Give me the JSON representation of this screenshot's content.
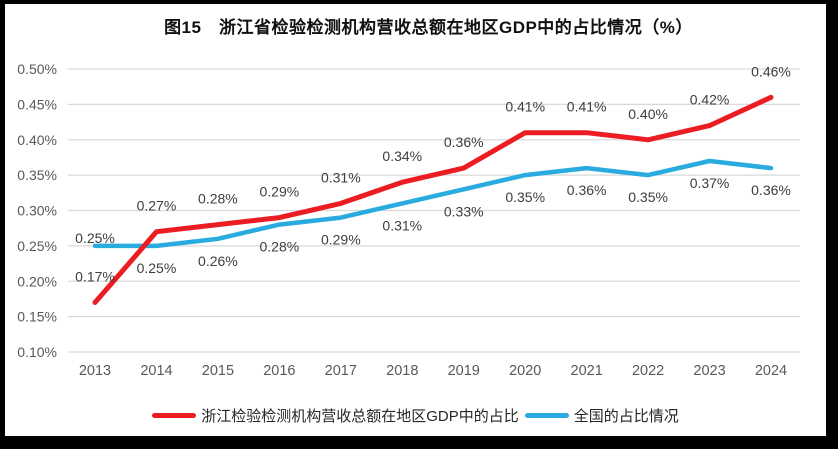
{
  "frame": {
    "border_color": "#000000",
    "background_color": "#ffffff"
  },
  "chart_data": {
    "type": "line",
    "title": "图15　浙江省检验检测机构营收总额在地区GDP中的占比情况（%）",
    "categories": [
      "2013",
      "2014",
      "2015",
      "2016",
      "2017",
      "2018",
      "2019",
      "2020",
      "2021",
      "2022",
      "2023",
      "2024"
    ],
    "series": [
      {
        "name": "浙江检验检测机构营收总额在地区GDP中的占比",
        "color": "#ec1c23",
        "values": [
          0.17,
          0.27,
          0.28,
          0.29,
          0.31,
          0.34,
          0.36,
          0.41,
          0.41,
          0.4,
          0.42,
          0.46
        ],
        "labels": [
          "0.17%",
          "0.27%",
          "0.28%",
          "0.29%",
          "0.31%",
          "0.34%",
          "0.36%",
          "0.41%",
          "0.41%",
          "0.40%",
          "0.42%",
          "0.46%"
        ],
        "label_position": "above"
      },
      {
        "name": "全国的占比情况",
        "color": "#2aabe0",
        "values": [
          0.25,
          0.25,
          0.26,
          0.28,
          0.29,
          0.31,
          0.33,
          0.35,
          0.36,
          0.35,
          0.37,
          0.36
        ],
        "labels": [
          "0.25%",
          "0.25%",
          "0.26%",
          "0.28%",
          "0.29%",
          "0.31%",
          "0.33%",
          "0.35%",
          "0.36%",
          "0.35%",
          "0.37%",
          "0.36%"
        ],
        "label_position": "below-except-first"
      }
    ],
    "y_ticks": [
      "0.50%",
      "0.45%",
      "0.40%",
      "0.35%",
      "0.30%",
      "0.25%",
      "0.20%",
      "0.15%",
      "0.10%"
    ],
    "ylim": [
      0.1,
      0.5
    ],
    "y_tick_step": 0.05,
    "xlabel": "",
    "ylabel": "",
    "grid": "horizontal-only",
    "legend_position": "bottom"
  },
  "styles": {
    "grid_color": "#d9d9d9",
    "axis_label_color": "#595959",
    "data_label_color": "#3d3d3d",
    "title_color": "#111111"
  }
}
